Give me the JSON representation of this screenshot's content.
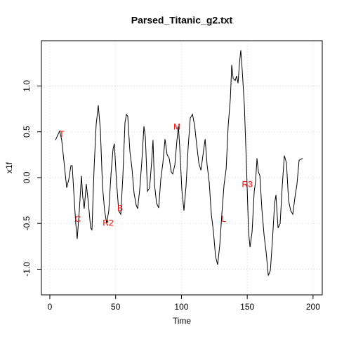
{
  "chart_data": {
    "type": "line",
    "title": "Parsed_Titanic_g2.txt",
    "x_label": "Time",
    "y_label": "x1f",
    "color": "#000000",
    "annotation_color": "#ff0000",
    "grid": true,
    "xlim": [
      -6.4,
      207
    ],
    "ylim": [
      -1.28,
      1.494
    ],
    "xticks": [
      0,
      50,
      100,
      150,
      200
    ],
    "yticks": [
      {
        "value": -1,
        "label": "-1.0"
      },
      {
        "value": -0.5,
        "label": "-0.5"
      },
      {
        "value": 0,
        "label": "0.0"
      },
      {
        "value": 0.5,
        "label": "0.5"
      },
      {
        "value": 1,
        "label": "1.0"
      }
    ],
    "x": [
      4.3,
      7.5,
      9,
      10.7,
      12.8,
      14.4,
      16,
      17,
      18.7,
      19.7,
      20.8,
      22.4,
      24,
      25,
      26.1,
      27.7,
      29.3,
      31,
      32,
      33.6,
      35.2,
      36.8,
      38.4,
      40,
      41.6,
      43.2,
      44.8,
      46.4,
      48,
      49,
      50.7,
      52.3,
      53.9,
      55.5,
      57.1,
      58.2,
      59.2,
      60.8,
      62.4,
      64,
      65.6,
      66.7,
      68.3,
      69.9,
      71.5,
      72.6,
      74.2,
      75.8,
      77.4,
      78.4,
      79.5,
      81.1,
      82.7,
      84.3,
      85.9,
      87.5,
      89.1,
      90.7,
      92.3,
      93.4,
      95,
      96.6,
      97.7,
      98.7,
      100.3,
      101.9,
      103.5,
      105.1,
      106.7,
      108.4,
      110,
      111.5,
      113.2,
      114.8,
      116.4,
      118,
      119.5,
      121.1,
      122.7,
      124.3,
      125.9,
      127.5,
      129.1,
      130.7,
      132.3,
      134,
      135.5,
      137.2,
      138.2,
      139.3,
      140.9,
      141.9,
      143,
      144.1,
      145.1,
      146.2,
      147.8,
      149.4,
      151,
      152.1,
      153.7,
      155.3,
      156.3,
      157.4,
      158.5,
      159.6,
      161.2,
      162.8,
      164.4,
      166,
      167.6,
      169.2,
      170.8,
      171.8,
      173.4,
      175,
      176.6,
      178.2,
      179.8,
      181.4,
      183,
      184.6,
      186.2,
      187.8,
      189.4,
      192.1
    ],
    "values": [
      0.41,
      0.51,
      0.41,
      0.18,
      -0.11,
      -0.02,
      0.13,
      0.13,
      -0.28,
      -0.5,
      -0.67,
      -0.36,
      0.02,
      -0.21,
      -0.34,
      -0.07,
      -0.28,
      -0.55,
      -0.57,
      0.1,
      0.58,
      0.79,
      0.52,
      -0.09,
      -0.36,
      -0.5,
      -0.36,
      0.02,
      0.31,
      0.37,
      -0.05,
      -0.36,
      -0.4,
      0.02,
      0.6,
      0.69,
      0.67,
      0.29,
      0.1,
      -0.17,
      -0.3,
      -0.34,
      -0.13,
      0.18,
      0.56,
      0.44,
      -0.15,
      -0.11,
      0.18,
      0.41,
      -0.07,
      -0.28,
      -0.33,
      -0.02,
      0.16,
      0.42,
      0.25,
      0.21,
      0.06,
      0.04,
      0.14,
      0.41,
      0.56,
      0.33,
      -0.13,
      -0.36,
      -0.09,
      0.33,
      0.65,
      0.69,
      0.57,
      0.37,
      0.16,
      0.08,
      0.25,
      0.42,
      0.14,
      -0.05,
      -0.4,
      -0.59,
      -0.86,
      -0.95,
      -0.74,
      -0.4,
      -0.09,
      0.1,
      0.56,
      0.87,
      1.23,
      1.08,
      1.06,
      1.11,
      1.03,
      1.25,
      1.39,
      1.17,
      0.79,
      0.14,
      -0.59,
      -0.76,
      -0.59,
      -0.15,
      -0.05,
      0.21,
      0.06,
      0.02,
      -0.36,
      -0.63,
      -0.82,
      -1.07,
      -1.01,
      -0.67,
      -0.28,
      -0.19,
      -0.55,
      -0.5,
      -0.09,
      0.24,
      0.16,
      -0.25,
      -0.36,
      -0.4,
      -0.22,
      -0.07,
      0.19,
      0.21
    ],
    "annotations": [
      {
        "text": "T",
        "x": 9,
        "y": 0.47
      },
      {
        "text": "C",
        "x": 21.3,
        "y": -0.46
      },
      {
        "text": "R2",
        "x": 44.3,
        "y": -0.5
      },
      {
        "text": "B",
        "x": 53.4,
        "y": -0.34
      },
      {
        "text": "M",
        "x": 96.6,
        "y": 0.55
      },
      {
        "text": "L",
        "x": 132.3,
        "y": -0.46
      },
      {
        "text": "R3",
        "x": 150,
        "y": -0.08
      }
    ]
  }
}
